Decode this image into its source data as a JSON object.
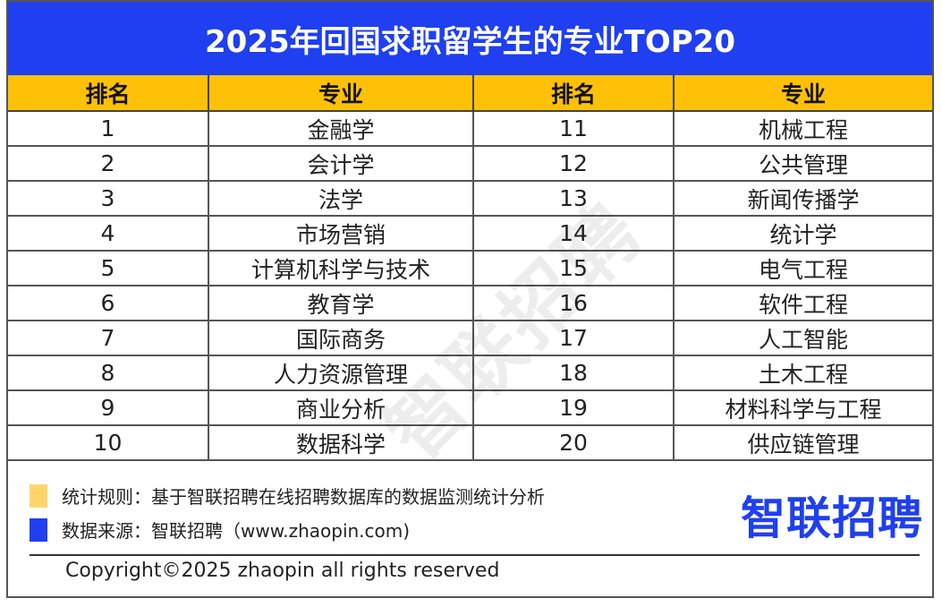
{
  "title": "2025年回国求职留学生的专业TOP20",
  "chart_data": {
    "type": "table",
    "title": "2025年回国求职留学生的专业TOP20",
    "columns": [
      "排名",
      "专业",
      "排名",
      "专业"
    ],
    "rows": [
      [
        "1",
        "金融学",
        "11",
        "机械工程"
      ],
      [
        "2",
        "会计学",
        "12",
        "公共管理"
      ],
      [
        "3",
        "法学",
        "13",
        "新闻传播学"
      ],
      [
        "4",
        "市场营销",
        "14",
        "统计学"
      ],
      [
        "5",
        "计算机科学与技术",
        "15",
        "电气工程"
      ],
      [
        "6",
        "教育学",
        "16",
        "软件工程"
      ],
      [
        "7",
        "国际商务",
        "17",
        "人工智能"
      ],
      [
        "8",
        "人力资源管理",
        "18",
        "土木工程"
      ],
      [
        "9",
        "商业分析",
        "19",
        "材料科学与工程"
      ],
      [
        "10",
        "数据科学",
        "20",
        "供应链管理"
      ]
    ]
  },
  "legend": {
    "rule_text": "统计规则：基于智联招聘在线招聘数据库的数据监测统计分析",
    "source_text": "数据来源：智联招聘（www.zhaopin.com)"
  },
  "brand": {
    "logo_text": "智联招聘",
    "watermark_text": "智联招聘"
  },
  "copyright": "Copyright©2025 zhaopin all rights reserved",
  "colors": {
    "title_bg": "#1f3ff0",
    "header_bg": "#ffc107",
    "rule_swatch": "#ffd56a",
    "source_swatch": "#1f3ff0"
  }
}
